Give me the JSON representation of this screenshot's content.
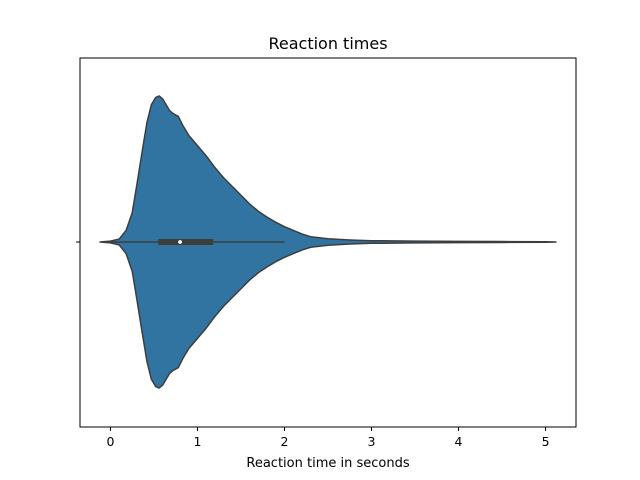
{
  "chart_data": {
    "type": "violin",
    "title": "Reaction times",
    "xlabel": "Reaction time in seconds",
    "ylabel": "",
    "xlim": [
      -0.35,
      5.35
    ],
    "xticks": [
      0,
      1,
      2,
      3,
      4,
      5
    ],
    "xtick_labels": [
      "0",
      "1",
      "2",
      "3",
      "4",
      "5"
    ],
    "grid": false,
    "color": "#3274a1",
    "edge_color": "#3d3d3d",
    "density_profile": {
      "x": [
        -0.12,
        0.0,
        0.1,
        0.18,
        0.25,
        0.3,
        0.37,
        0.42,
        0.47,
        0.52,
        0.56,
        0.6,
        0.64,
        0.68,
        0.72,
        0.78,
        0.83,
        0.9,
        1.0,
        1.1,
        1.2,
        1.3,
        1.4,
        1.5,
        1.6,
        1.7,
        1.8,
        1.9,
        2.0,
        2.1,
        2.2,
        2.3,
        2.5,
        2.75,
        3.0,
        3.5,
        4.0,
        4.5,
        5.0,
        5.12
      ],
      "relative_width": [
        0.0,
        0.006,
        0.02,
        0.08,
        0.2,
        0.38,
        0.64,
        0.82,
        0.94,
        0.99,
        1.0,
        0.98,
        0.94,
        0.9,
        0.88,
        0.86,
        0.8,
        0.73,
        0.66,
        0.59,
        0.51,
        0.44,
        0.38,
        0.32,
        0.26,
        0.21,
        0.17,
        0.135,
        0.105,
        0.08,
        0.055,
        0.036,
        0.022,
        0.014,
        0.009,
        0.006,
        0.004,
        0.003,
        0.002,
        0.0
      ]
    },
    "box": {
      "q1": 0.55,
      "median": 0.8,
      "q3": 1.18,
      "whisker_low": 0.0,
      "whisker_high": 2.0
    }
  }
}
